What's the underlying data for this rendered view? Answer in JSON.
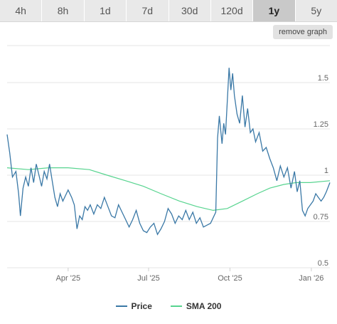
{
  "tabs": [
    {
      "label": "4h",
      "active": false
    },
    {
      "label": "8h",
      "active": false
    },
    {
      "label": "1d",
      "active": false
    },
    {
      "label": "7d",
      "active": false
    },
    {
      "label": "30d",
      "active": false
    },
    {
      "label": "120d",
      "active": false
    },
    {
      "label": "1y",
      "active": true
    },
    {
      "label": "5y",
      "active": false
    }
  ],
  "remove_graph_label": "remove graph",
  "legend": {
    "price_label": "Price",
    "sma_label": "SMA 200"
  },
  "colors": {
    "price": "#3a78a6",
    "sma": "#57d48f",
    "grid": "#e6e6e6",
    "axis_text": "#666666"
  },
  "chart_data": {
    "type": "line",
    "grid": true,
    "legend_position": "bottom",
    "ylim": [
      0.5,
      1.7
    ],
    "y_ticks": [
      0.5,
      0.75,
      1,
      1.25,
      1.5
    ],
    "y_tick_labels": [
      "0.5",
      "0.75",
      "1",
      "1.25",
      "1.5"
    ],
    "x_ticks": [
      {
        "date": "2025-04-01",
        "label": "Apr '25"
      },
      {
        "date": "2025-07-01",
        "label": "Jul '25"
      },
      {
        "date": "2025-10-01",
        "label": "Oct '25"
      },
      {
        "date": "2026-01-01",
        "label": "Jan '26"
      }
    ],
    "xlim": [
      "2025-01-22",
      "2026-01-22"
    ],
    "series": [
      {
        "name": "Price",
        "x": [
          "2025-01-22",
          "2025-01-25",
          "2025-01-28",
          "2025-02-01",
          "2025-02-04",
          "2025-02-06",
          "2025-02-09",
          "2025-02-12",
          "2025-02-15",
          "2025-02-18",
          "2025-02-21",
          "2025-02-24",
          "2025-02-27",
          "2025-03-02",
          "2025-03-05",
          "2025-03-08",
          "2025-03-11",
          "2025-03-14",
          "2025-03-17",
          "2025-03-20",
          "2025-03-23",
          "2025-03-26",
          "2025-03-29",
          "2025-04-01",
          "2025-04-05",
          "2025-04-08",
          "2025-04-11",
          "2025-04-14",
          "2025-04-17",
          "2025-04-20",
          "2025-04-23",
          "2025-04-26",
          "2025-04-30",
          "2025-05-04",
          "2025-05-08",
          "2025-05-12",
          "2025-05-16",
          "2025-05-20",
          "2025-05-24",
          "2025-05-28",
          "2025-06-01",
          "2025-06-05",
          "2025-06-09",
          "2025-06-13",
          "2025-06-17",
          "2025-06-21",
          "2025-06-25",
          "2025-06-29",
          "2025-07-03",
          "2025-07-07",
          "2025-07-11",
          "2025-07-15",
          "2025-07-19",
          "2025-07-23",
          "2025-07-27",
          "2025-07-31",
          "2025-08-04",
          "2025-08-08",
          "2025-08-12",
          "2025-08-16",
          "2025-08-20",
          "2025-08-24",
          "2025-08-28",
          "2025-09-01",
          "2025-09-05",
          "2025-09-09",
          "2025-09-12",
          "2025-09-15",
          "2025-09-17",
          "2025-09-19",
          "2025-09-22",
          "2025-09-24",
          "2025-09-26",
          "2025-09-28",
          "2025-09-30",
          "2025-10-02",
          "2025-10-04",
          "2025-10-06",
          "2025-10-09",
          "2025-10-12",
          "2025-10-15",
          "2025-10-18",
          "2025-10-21",
          "2025-10-24",
          "2025-10-27",
          "2025-10-30",
          "2025-11-03",
          "2025-11-07",
          "2025-11-11",
          "2025-11-15",
          "2025-11-19",
          "2025-11-23",
          "2025-11-27",
          "2025-12-01",
          "2025-12-05",
          "2025-12-09",
          "2025-12-13",
          "2025-12-16",
          "2025-12-19",
          "2025-12-22",
          "2025-12-25",
          "2025-12-28",
          "2025-12-31",
          "2026-01-03",
          "2026-01-06",
          "2026-01-09",
          "2026-01-12",
          "2026-01-15",
          "2026-01-18",
          "2026-01-22"
        ],
        "values": [
          1.22,
          1.12,
          0.99,
          1.02,
          0.9,
          0.78,
          0.93,
          0.99,
          0.94,
          1.04,
          0.96,
          1.06,
          1.0,
          0.94,
          1.02,
          0.98,
          1.06,
          0.97,
          0.88,
          0.83,
          0.9,
          0.86,
          0.89,
          0.92,
          0.88,
          0.84,
          0.71,
          0.78,
          0.76,
          0.83,
          0.81,
          0.84,
          0.79,
          0.84,
          0.82,
          0.88,
          0.83,
          0.78,
          0.77,
          0.84,
          0.8,
          0.76,
          0.72,
          0.76,
          0.81,
          0.74,
          0.7,
          0.69,
          0.72,
          0.74,
          0.68,
          0.71,
          0.75,
          0.82,
          0.79,
          0.74,
          0.78,
          0.76,
          0.81,
          0.76,
          0.8,
          0.74,
          0.77,
          0.72,
          0.73,
          0.74,
          0.77,
          0.8,
          1.2,
          1.32,
          1.17,
          1.28,
          1.22,
          1.4,
          1.58,
          1.46,
          1.55,
          1.43,
          1.33,
          1.28,
          1.43,
          1.26,
          1.36,
          1.23,
          1.25,
          1.18,
          1.23,
          1.13,
          1.15,
          1.09,
          1.04,
          0.97,
          1.05,
          0.99,
          1.04,
          0.93,
          1.02,
          0.91,
          0.97,
          0.81,
          0.78,
          0.82,
          0.84,
          0.86,
          0.9,
          0.88,
          0.86,
          0.88,
          0.91,
          0.96
        ]
      },
      {
        "name": "SMA 200",
        "x": [
          "2025-01-22",
          "2025-02-15",
          "2025-03-10",
          "2025-04-01",
          "2025-04-25",
          "2025-05-15",
          "2025-06-05",
          "2025-06-25",
          "2025-07-15",
          "2025-08-05",
          "2025-08-25",
          "2025-09-12",
          "2025-09-28",
          "2025-10-15",
          "2025-11-01",
          "2025-11-15",
          "2025-12-01",
          "2025-12-15",
          "2025-12-31",
          "2026-01-22"
        ],
        "values": [
          1.04,
          1.03,
          1.04,
          1.04,
          1.03,
          1.0,
          0.97,
          0.94,
          0.9,
          0.86,
          0.83,
          0.81,
          0.82,
          0.86,
          0.9,
          0.93,
          0.95,
          0.96,
          0.96,
          0.97
        ]
      }
    ]
  }
}
